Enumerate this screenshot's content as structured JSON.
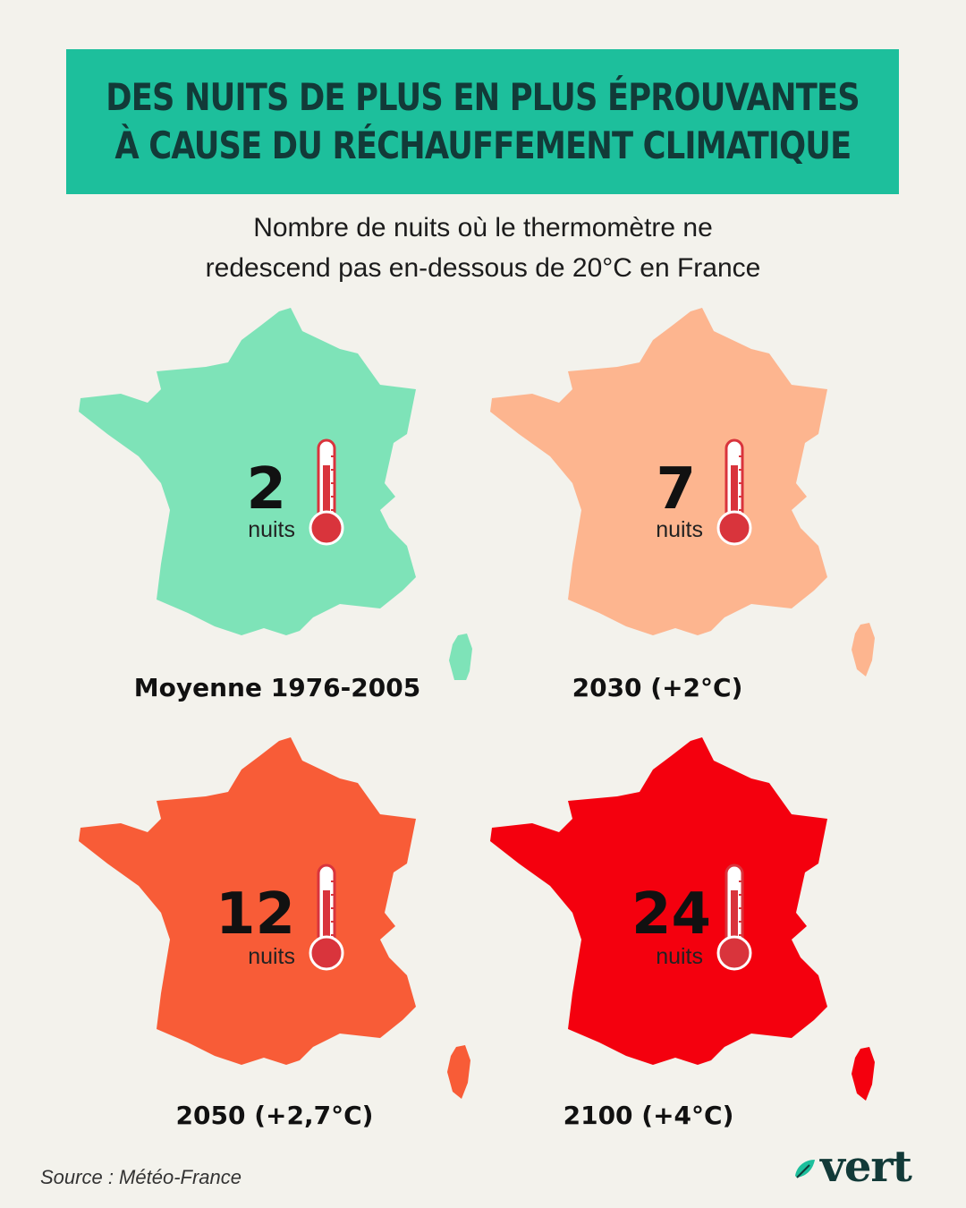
{
  "header": {
    "title_line1": "DES NUITS DE PLUS EN PLUS ÉPROUVANTES",
    "title_line2": "À CAUSE DU RÉCHAUFFEMENT CLIMATIQUE",
    "subtitle_line1": "Nombre de nuits où le thermomètre ne",
    "subtitle_line2": "redescend pas en-dessous de 20°C en France"
  },
  "panels": [
    {
      "count": "2",
      "unit": "nuits",
      "caption": "Moyenne 1976-2005",
      "color": "#7ee3b8"
    },
    {
      "count": "7",
      "unit": "nuits",
      "caption": "2030 (+2°C)",
      "color": "#fdb58f"
    },
    {
      "count": "12",
      "unit": "nuits",
      "caption": "2050 (+2,7°C)",
      "color": "#f85c37"
    },
    {
      "count": "24",
      "unit": "nuits",
      "caption": "2100 (+4°C)",
      "color": "#f4000e"
    }
  ],
  "footer": {
    "source": "Source : Météo-France",
    "logo_text": "vert",
    "logo_icon": "leaf-icon"
  },
  "colors": {
    "title_bg": "#1dbf9c",
    "title_text": "#123a38",
    "background": "#f3f2ec",
    "thermometer": "#d9343c"
  }
}
